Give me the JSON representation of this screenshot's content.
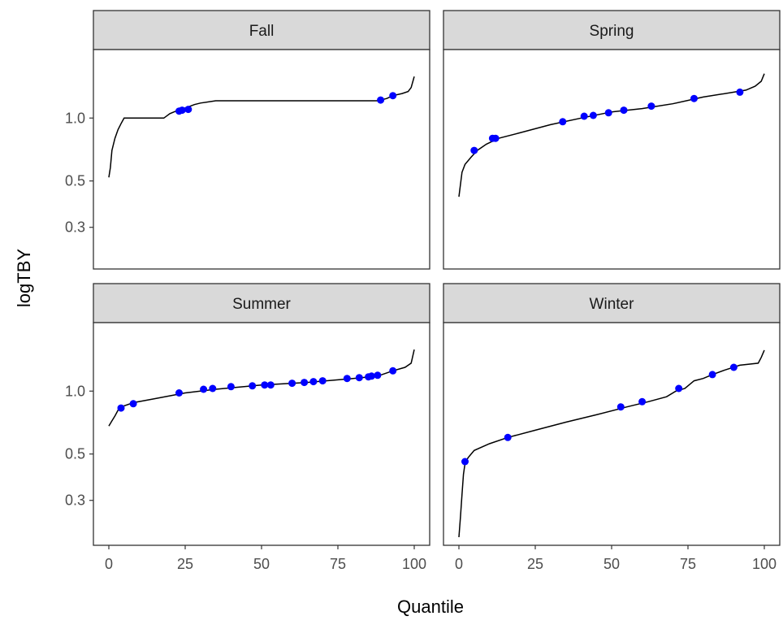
{
  "chart_data": {
    "type": "scatter",
    "layout": "facet-grid 2x2",
    "xlabel": "Quantile",
    "ylabel": "logTBY",
    "y_scale": "log",
    "xlim": [
      0,
      100
    ],
    "ylim": [
      0.2,
      1.7
    ],
    "x_ticks": [
      0,
      25,
      50,
      75,
      100
    ],
    "y_ticks": [
      0.3,
      0.5,
      1.0
    ],
    "x_tick_labels": [
      "0",
      "25",
      "50",
      "75",
      "100"
    ],
    "y_tick_labels": [
      "0.3",
      "0.5",
      "1.0"
    ],
    "colors": {
      "points": "#0000ff",
      "curve": "#000000",
      "strip_bg": "#d9d9d9",
      "panel_border": "#333333"
    },
    "panels": [
      {
        "name": "Fall",
        "curve": [
          [
            0,
            0.52
          ],
          [
            0.5,
            0.58
          ],
          [
            1,
            0.7
          ],
          [
            2,
            0.8
          ],
          [
            3,
            0.88
          ],
          [
            4,
            0.94
          ],
          [
            5,
            1.0
          ],
          [
            18,
            1.0
          ],
          [
            20,
            1.05
          ],
          [
            22,
            1.08
          ],
          [
            26,
            1.13
          ],
          [
            28,
            1.16
          ],
          [
            30,
            1.18
          ],
          [
            35,
            1.21
          ],
          [
            88,
            1.21
          ],
          [
            91,
            1.24
          ],
          [
            93,
            1.28
          ],
          [
            96,
            1.31
          ],
          [
            98,
            1.34
          ],
          [
            99,
            1.4
          ],
          [
            100,
            1.58
          ]
        ],
        "points": [
          [
            23,
            1.08
          ],
          [
            24,
            1.09
          ],
          [
            26,
            1.1
          ],
          [
            89,
            1.22
          ],
          [
            93,
            1.28
          ]
        ]
      },
      {
        "name": "Spring",
        "curve": [
          [
            0,
            0.42
          ],
          [
            1,
            0.55
          ],
          [
            2,
            0.6
          ],
          [
            4,
            0.65
          ],
          [
            6,
            0.7
          ],
          [
            9,
            0.75
          ],
          [
            13,
            0.8
          ],
          [
            20,
            0.85
          ],
          [
            30,
            0.93
          ],
          [
            40,
            1.0
          ],
          [
            50,
            1.07
          ],
          [
            60,
            1.11
          ],
          [
            70,
            1.17
          ],
          [
            80,
            1.26
          ],
          [
            90,
            1.33
          ],
          [
            94,
            1.36
          ],
          [
            97,
            1.42
          ],
          [
            99,
            1.5
          ],
          [
            100,
            1.63
          ]
        ],
        "points": [
          [
            5,
            0.7
          ],
          [
            11,
            0.8
          ],
          [
            12,
            0.8
          ],
          [
            34,
            0.96
          ],
          [
            41,
            1.02
          ],
          [
            44,
            1.03
          ],
          [
            49,
            1.06
          ],
          [
            54,
            1.09
          ],
          [
            63,
            1.14
          ],
          [
            77,
            1.24
          ],
          [
            92,
            1.33
          ]
        ]
      },
      {
        "name": "Summer",
        "curve": [
          [
            0,
            0.68
          ],
          [
            1,
            0.72
          ],
          [
            2,
            0.76
          ],
          [
            3,
            0.81
          ],
          [
            5,
            0.85
          ],
          [
            8,
            0.88
          ],
          [
            15,
            0.92
          ],
          [
            25,
            0.98
          ],
          [
            35,
            1.02
          ],
          [
            50,
            1.07
          ],
          [
            65,
            1.1
          ],
          [
            80,
            1.15
          ],
          [
            88,
            1.18
          ],
          [
            93,
            1.25
          ],
          [
            97,
            1.3
          ],
          [
            99,
            1.36
          ],
          [
            100,
            1.58
          ]
        ],
        "points": [
          [
            4,
            0.83
          ],
          [
            8,
            0.87
          ],
          [
            23,
            0.98
          ],
          [
            31,
            1.02
          ],
          [
            34,
            1.03
          ],
          [
            40,
            1.05
          ],
          [
            47,
            1.06
          ],
          [
            51,
            1.07
          ],
          [
            53,
            1.07
          ],
          [
            60,
            1.09
          ],
          [
            64,
            1.1
          ],
          [
            67,
            1.11
          ],
          [
            70,
            1.12
          ],
          [
            78,
            1.15
          ],
          [
            82,
            1.16
          ],
          [
            85,
            1.17
          ],
          [
            86,
            1.18
          ],
          [
            88,
            1.19
          ],
          [
            93,
            1.25
          ]
        ]
      },
      {
        "name": "Winter",
        "curve": [
          [
            0,
            0.2
          ],
          [
            0.5,
            0.25
          ],
          [
            1,
            0.32
          ],
          [
            1.5,
            0.4
          ],
          [
            2,
            0.45
          ],
          [
            3,
            0.48
          ],
          [
            5,
            0.52
          ],
          [
            10,
            0.56
          ],
          [
            16,
            0.6
          ],
          [
            25,
            0.65
          ],
          [
            35,
            0.71
          ],
          [
            45,
            0.77
          ],
          [
            55,
            0.84
          ],
          [
            62,
            0.89
          ],
          [
            68,
            0.94
          ],
          [
            71,
            1.0
          ],
          [
            74,
            1.03
          ],
          [
            77,
            1.12
          ],
          [
            80,
            1.15
          ],
          [
            83,
            1.2
          ],
          [
            87,
            1.26
          ],
          [
            92,
            1.33
          ],
          [
            98,
            1.36
          ],
          [
            99,
            1.45
          ],
          [
            100,
            1.57
          ]
        ],
        "points": [
          [
            2,
            0.46
          ],
          [
            16,
            0.6
          ],
          [
            53,
            0.84
          ],
          [
            60,
            0.89
          ],
          [
            72,
            1.03
          ],
          [
            83,
            1.2
          ],
          [
            90,
            1.3
          ]
        ]
      }
    ]
  }
}
